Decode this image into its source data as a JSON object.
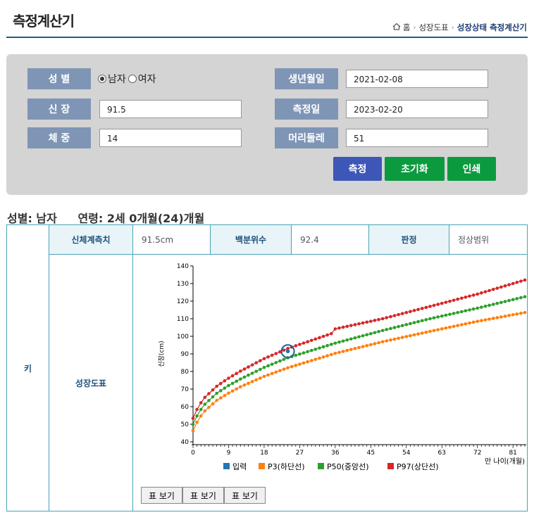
{
  "header": {
    "title": "측정계산기",
    "breadcrumb": [
      "홈",
      "성장도표",
      "성장상태 측정계산기"
    ]
  },
  "form": {
    "gender_label": "성 별",
    "gender_options": [
      "남자",
      "여자"
    ],
    "gender_selected": "남자",
    "height_label": "신 장",
    "height_value": "91.5",
    "weight_label": "체 중",
    "weight_value": "14",
    "birth_label": "생년월일",
    "birth_value": "2021-02-08",
    "measure_date_label": "측정일",
    "measure_date_value": "2023-02-20",
    "head_label": "머리둘레",
    "head_value": "51",
    "buttons": {
      "measure": "측정",
      "reset": "초기화",
      "print": "인쇄"
    },
    "colors": {
      "measure": "#3d57b8",
      "reset": "#0c9a3f",
      "print": "#0c9a3f"
    }
  },
  "summary": {
    "gender": "성별: 남자",
    "age": "연령: 2세 0개월(24)개월"
  },
  "result": {
    "row_header": "키",
    "col_measure": "신체계측치",
    "measure_value": "91.5cm",
    "col_percentile": "백분위수",
    "percentile_value": "92.4",
    "col_judgement": "판정",
    "judgement_value": "정상범위",
    "chart_section_label": "성장도표",
    "table_buttons": [
      "표 보기",
      "표 보기",
      "표 보기"
    ]
  },
  "chart_data": {
    "type": "line",
    "ylabel": "신장(cm)",
    "xlabel": "만 나이(개월)",
    "xlim": [
      0,
      84
    ],
    "ylim": [
      40,
      140
    ],
    "xticks": [
      0,
      9,
      18,
      27,
      36,
      45,
      54,
      63,
      72,
      81
    ],
    "yticks": [
      40,
      50,
      60,
      70,
      80,
      90,
      100,
      110,
      120,
      130,
      140
    ],
    "series": [
      {
        "name": "입력",
        "color": "#1f77b4",
        "points": [
          [
            24,
            91.5
          ]
        ]
      },
      {
        "name": "P3(하단선)",
        "color": "#ff7f0e",
        "anchors": [
          [
            0,
            46.3
          ],
          [
            1,
            51.1
          ],
          [
            2,
            54.7
          ],
          [
            3,
            57.6
          ],
          [
            6,
            63.6
          ],
          [
            9,
            67.7
          ],
          [
            12,
            71.3
          ],
          [
            18,
            77.2
          ],
          [
            24,
            82.1
          ],
          [
            36,
            90.3
          ],
          [
            48,
            96.9
          ],
          [
            60,
            102.8
          ],
          [
            72,
            108.5
          ],
          [
            84,
            113.5
          ]
        ]
      },
      {
        "name": "P50(중앙선)",
        "color": "#2ca02c",
        "anchors": [
          [
            0,
            49.9
          ],
          [
            1,
            54.7
          ],
          [
            2,
            58.4
          ],
          [
            3,
            61.4
          ],
          [
            6,
            67.6
          ],
          [
            9,
            72.0
          ],
          [
            12,
            75.7
          ],
          [
            18,
            82.3
          ],
          [
            24,
            87.8
          ],
          [
            36,
            96.1
          ],
          [
            48,
            103.3
          ],
          [
            60,
            110.0
          ],
          [
            72,
            116.0
          ],
          [
            84,
            122.5
          ]
        ]
      },
      {
        "name": "P97(상단선)",
        "color": "#d62728",
        "anchors": [
          [
            0,
            53.4
          ],
          [
            1,
            58.4
          ],
          [
            2,
            62.2
          ],
          [
            3,
            65.3
          ],
          [
            6,
            71.6
          ],
          [
            9,
            76.2
          ],
          [
            12,
            80.2
          ],
          [
            18,
            87.3
          ],
          [
            24,
            93.1
          ],
          [
            35,
            101.5
          ],
          [
            36,
            104.2
          ],
          [
            48,
            110.0
          ],
          [
            60,
            117.0
          ],
          [
            72,
            124.0
          ],
          [
            84,
            132.0
          ]
        ]
      }
    ],
    "legend_position": "bottom",
    "highlight": {
      "x": 24,
      "y": 91.5
    }
  }
}
